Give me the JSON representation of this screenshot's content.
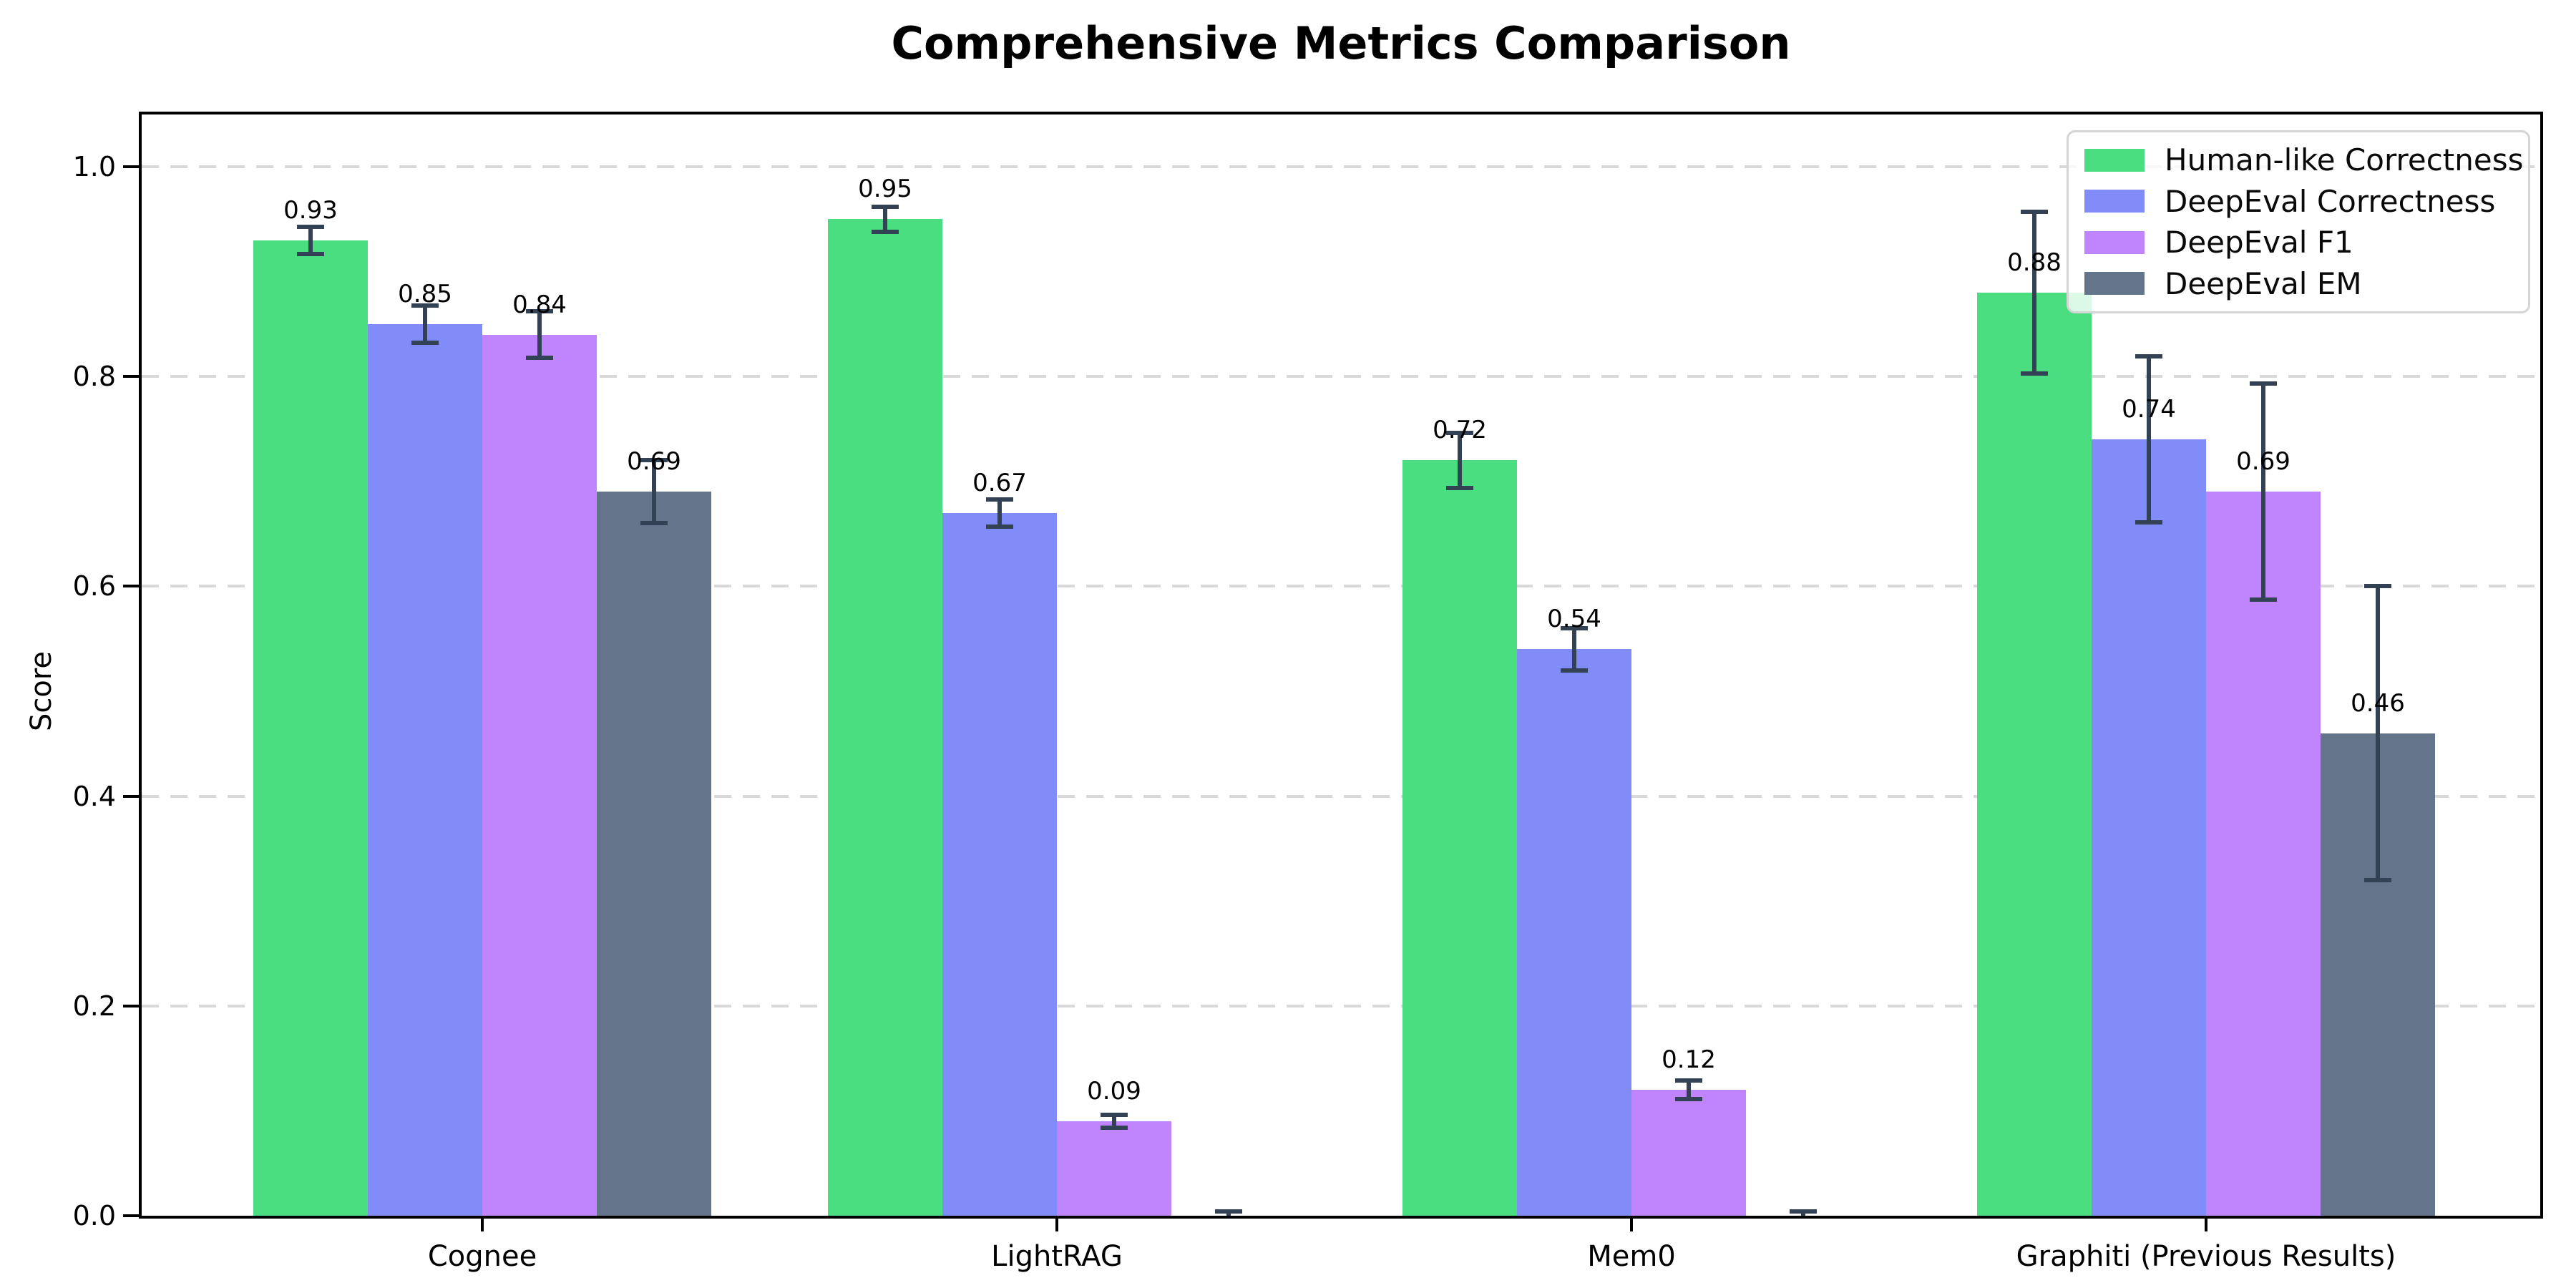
{
  "chart_data": {
    "type": "bar",
    "title": "Comprehensive Metrics Comparison",
    "ylabel": "Score",
    "categories": [
      "Cognee",
      "LightRAG",
      "Mem0",
      "Graphiti (Previous Results)"
    ],
    "series": [
      {
        "name": "Human-like Correctness",
        "color": "#4ade80",
        "values": [
          0.93,
          0.95,
          0.72,
          0.88
        ],
        "errors": [
          0.013,
          0.012,
          0.026,
          0.077
        ],
        "labels": [
          "0.93",
          "0.95",
          "0.72",
          "0.88"
        ]
      },
      {
        "name": "DeepEval Correctness",
        "color": "#818cf8",
        "values": [
          0.85,
          0.67,
          0.54,
          0.74
        ],
        "errors": [
          0.018,
          0.013,
          0.02,
          0.079
        ],
        "labels": [
          "0.85",
          "0.67",
          "0.54",
          "0.74"
        ]
      },
      {
        "name": "DeepEval F1",
        "color": "#c084fc",
        "values": [
          0.84,
          0.09,
          0.12,
          0.69
        ],
        "errors": [
          0.022,
          0.006,
          0.009,
          0.103
        ],
        "labels": [
          "0.84",
          "0.09",
          "0.12",
          "0.69"
        ]
      },
      {
        "name": "DeepEval EM",
        "color": "#64748b",
        "values": [
          0.69,
          0.0,
          0.0,
          0.46
        ],
        "errors": [
          0.03,
          0.004,
          0.004,
          0.14
        ],
        "labels": [
          "0.69",
          "",
          "",
          "0.46"
        ]
      }
    ],
    "yticks": {
      "labels": [
        "0.0",
        "0.2",
        "0.4",
        "0.6",
        "0.8",
        "1.0"
      ],
      "values": [
        0.0,
        0.2,
        0.4,
        0.6,
        0.8,
        1.0
      ]
    },
    "ylim": [
      0.0,
      1.05
    ],
    "grid": "horizontal-dashed",
    "legend_position": "upper-right",
    "error_bar_color": "#334155",
    "axis_color": "#000000",
    "gridline_color": "#d9d9d9"
  }
}
